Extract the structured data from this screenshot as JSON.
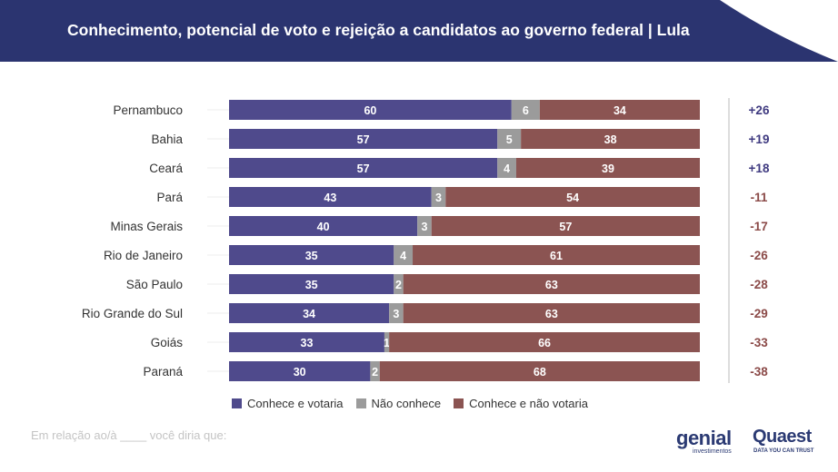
{
  "header": {
    "title": "Conhecimento, potencial de voto e rejeição a candidatos ao governo federal | Lula"
  },
  "colors": {
    "conhece_votaria": "#4f4a8c",
    "nao_conhece": "#9b9b9b",
    "conhece_nao_votaria": "#8b5452",
    "positive_net": "#3f3a80",
    "negative_net": "#8b4a48",
    "header_bg": "#2b3470"
  },
  "chart_data": {
    "type": "bar",
    "orientation": "horizontal",
    "stacked": true,
    "categories": [
      "Pernambuco",
      "Bahia",
      "Ceará",
      "Pará",
      "Minas Gerais",
      "Rio de Janeiro",
      "São Paulo",
      "Rio Grande do Sul",
      "Goiás",
      "Paraná"
    ],
    "series": [
      {
        "name": "Conhece e votaria",
        "values": [
          60,
          57,
          57,
          43,
          40,
          35,
          35,
          34,
          33,
          30
        ]
      },
      {
        "name": "Não conhece",
        "values": [
          6,
          5,
          4,
          3,
          3,
          4,
          2,
          3,
          1,
          2
        ]
      },
      {
        "name": "Conhece e não votaria",
        "values": [
          34,
          38,
          39,
          54,
          57,
          61,
          63,
          63,
          66,
          68
        ]
      }
    ],
    "net_labels": [
      "+26",
      "+19",
      "+18",
      "-11",
      "-17",
      "-26",
      "-28",
      "-29",
      "-33",
      "-38"
    ],
    "legend_position": "bottom",
    "title": "Conhecimento, potencial de voto e rejeição a candidatos ao governo federal | Lula"
  },
  "footnote": "Em relação ao/à ____ você diria que:",
  "logos": {
    "genial": "genial",
    "genial_sub": "investimentos",
    "quaest": "Quaest",
    "quaest_sub": "DATA YOU CAN TRUST"
  }
}
